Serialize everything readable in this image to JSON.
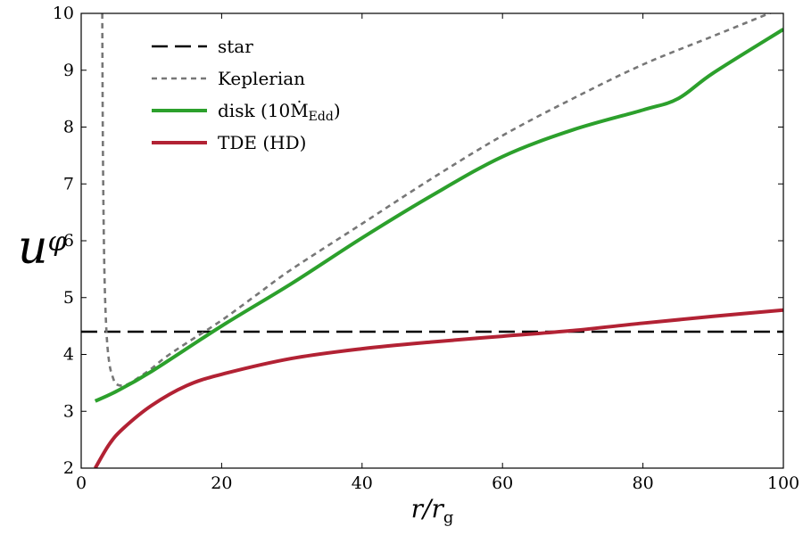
{
  "chart_data": {
    "type": "line",
    "title": "",
    "xlabel": "r/r_g",
    "ylabel": "u_φ",
    "xlim": [
      0,
      100
    ],
    "ylim": [
      2,
      10
    ],
    "xticks": [
      0,
      20,
      40,
      60,
      80,
      100
    ],
    "yticks": [
      2,
      3,
      4,
      5,
      6,
      7,
      8,
      9,
      10
    ],
    "legend_position": "top-left",
    "series": [
      {
        "name": "star",
        "label": "star",
        "color": "#000000",
        "style": "long-dash",
        "x": [
          0,
          100
        ],
        "y": [
          4.4,
          4.4
        ]
      },
      {
        "name": "Keplerian",
        "label": "Keplerian",
        "color": "#777777",
        "style": "short-dash",
        "x": [
          3.0,
          3.1,
          3.3,
          3.6,
          4.0,
          4.5,
          5.0,
          6.0,
          7.0,
          8.0,
          10,
          12,
          15,
          20,
          25,
          30,
          40,
          50,
          60,
          70,
          80,
          90,
          100
        ],
        "y": [
          10.0,
          7.5,
          5.5,
          4.4,
          3.85,
          3.6,
          3.48,
          3.45,
          3.5,
          3.58,
          3.75,
          3.95,
          4.2,
          4.6,
          5.05,
          5.5,
          6.3,
          7.1,
          7.85,
          8.5,
          9.1,
          9.6,
          10.1
        ]
      },
      {
        "name": "disk",
        "label": "disk (10Ṁ",
        "label_sub": "Edd",
        "label_suffix": ")",
        "color": "#2ca02c",
        "style": "solid",
        "x": [
          2,
          5,
          10,
          20,
          30,
          40,
          50,
          60,
          70,
          80,
          85,
          90,
          100
        ],
        "y": [
          3.18,
          3.35,
          3.7,
          4.5,
          5.25,
          6.05,
          6.8,
          7.48,
          7.95,
          8.3,
          8.5,
          8.95,
          9.72
        ]
      },
      {
        "name": "TDE (HD)",
        "label": "TDE (HD)",
        "color": "#b22234",
        "style": "solid",
        "x": [
          2,
          4,
          6,
          10,
          15,
          20,
          30,
          40,
          50,
          60,
          70,
          80,
          90,
          100
        ],
        "y": [
          2.0,
          2.42,
          2.7,
          3.1,
          3.45,
          3.65,
          3.93,
          4.1,
          4.22,
          4.32,
          4.42,
          4.55,
          4.67,
          4.78
        ]
      }
    ]
  }
}
